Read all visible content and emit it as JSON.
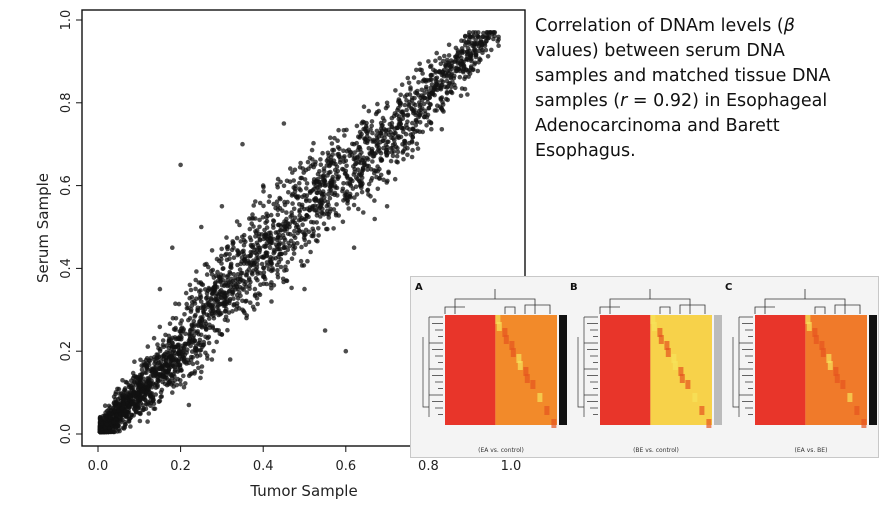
{
  "caption": {
    "part1": "Correlation of DNAm levels (",
    "beta": "β",
    "part2": " values) between serum DNA samples and matched tissue DNA samples (",
    "r": "r",
    "part3": " = 0.92) in Esophageal Adenocarcinoma and Barett Esophagus."
  },
  "chart_data": [
    {
      "type": "scatter",
      "xlabel": "Tumor Sample",
      "ylabel": "Serum Sample",
      "xlim": [
        0,
        1.0
      ],
      "ylim": [
        0,
        1.0
      ],
      "xticks": [
        "0.0",
        "0.2",
        "0.4",
        "0.6",
        "0.8",
        "1.0"
      ],
      "yticks": [
        "0.0",
        "0.2",
        "0.4",
        "0.6",
        "0.8",
        "1.0"
      ],
      "correlation_r": 0.92,
      "point_color": "#111111",
      "clusters": [
        {
          "x_range": [
            0.0,
            0.25
          ],
          "y_range": [
            0.0,
            0.2
          ],
          "density": "very high"
        },
        {
          "x_range": [
            0.25,
            0.6
          ],
          "y_range": [
            0.2,
            0.7
          ],
          "density": "high"
        },
        {
          "x_range": [
            0.6,
            0.95
          ],
          "y_range": [
            0.6,
            0.97
          ],
          "density": "high"
        }
      ],
      "points": [
        [
          0.02,
          0.01
        ],
        [
          0.05,
          0.02
        ],
        [
          0.08,
          0.04
        ],
        [
          0.1,
          0.05
        ],
        [
          0.12,
          0.03
        ],
        [
          0.15,
          0.08
        ],
        [
          0.18,
          0.1
        ],
        [
          0.2,
          0.12
        ],
        [
          0.22,
          0.07
        ],
        [
          0.25,
          0.15
        ],
        [
          0.28,
          0.2
        ],
        [
          0.3,
          0.24
        ],
        [
          0.32,
          0.18
        ],
        [
          0.35,
          0.3
        ],
        [
          0.38,
          0.35
        ],
        [
          0.4,
          0.38
        ],
        [
          0.42,
          0.32
        ],
        [
          0.45,
          0.45
        ],
        [
          0.48,
          0.5
        ],
        [
          0.5,
          0.48
        ],
        [
          0.52,
          0.55
        ],
        [
          0.55,
          0.6
        ],
        [
          0.58,
          0.62
        ],
        [
          0.6,
          0.66
        ],
        [
          0.62,
          0.7
        ],
        [
          0.65,
          0.74
        ],
        [
          0.68,
          0.78
        ],
        [
          0.7,
          0.8
        ],
        [
          0.72,
          0.83
        ],
        [
          0.75,
          0.86
        ],
        [
          0.78,
          0.88
        ],
        [
          0.8,
          0.9
        ],
        [
          0.82,
          0.92
        ],
        [
          0.85,
          0.94
        ],
        [
          0.88,
          0.95
        ],
        [
          0.9,
          0.96
        ],
        [
          0.92,
          0.96
        ],
        [
          0.3,
          0.55
        ],
        [
          0.2,
          0.65
        ],
        [
          0.35,
          0.7
        ],
        [
          0.15,
          0.35
        ],
        [
          0.55,
          0.25
        ],
        [
          0.6,
          0.2
        ],
        [
          0.7,
          0.55
        ],
        [
          0.25,
          0.5
        ],
        [
          0.45,
          0.75
        ],
        [
          0.5,
          0.35
        ],
        [
          0.4,
          0.6
        ],
        [
          0.62,
          0.45
        ],
        [
          0.18,
          0.45
        ]
      ]
    },
    {
      "type": "heatmap",
      "panels": [
        {
          "label": "A",
          "subtitle": "(EA vs. control)",
          "left_color": "#e8352a",
          "right_color": "#f28a2a",
          "side_bar": "#111111"
        },
        {
          "label": "B",
          "subtitle": "(BE vs. control)",
          "left_color": "#e8352a",
          "right_color": "#f7d24a",
          "side_bar": "#bbbbbb"
        },
        {
          "label": "C",
          "subtitle": "(EA vs. BE)",
          "left_color": "#e8352a",
          "right_color": "#f07a2a",
          "side_bar": "#111111"
        }
      ]
    }
  ]
}
